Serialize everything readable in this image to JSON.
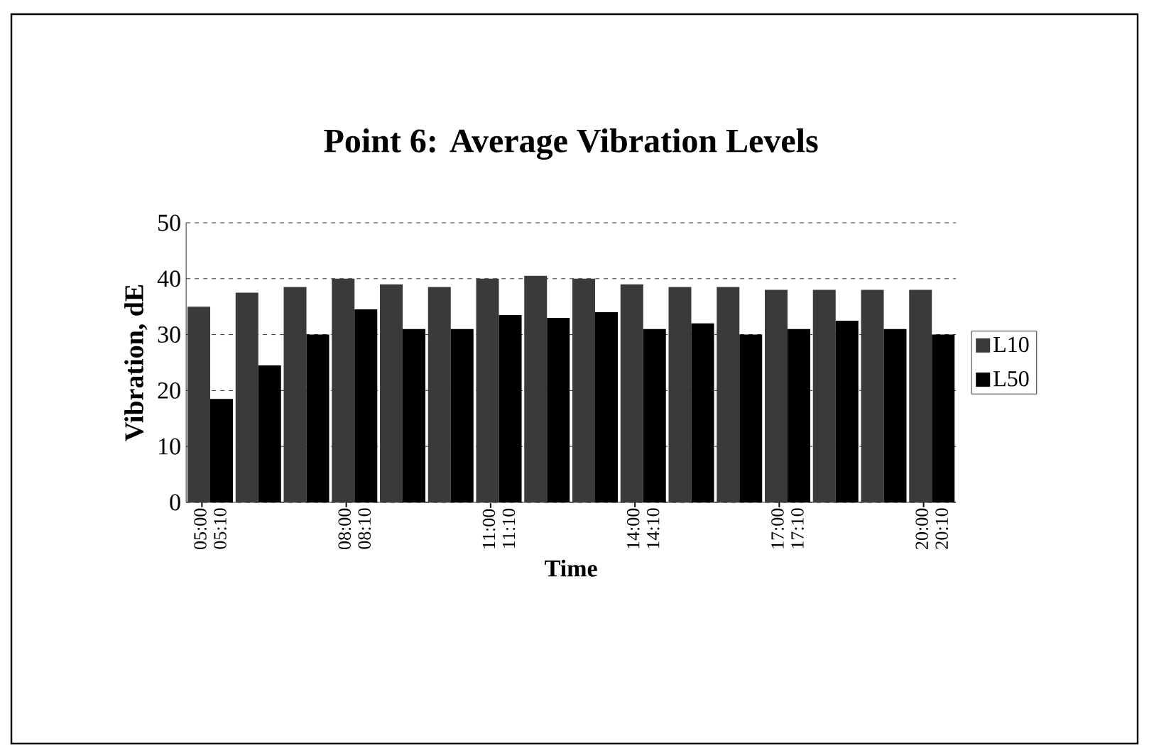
{
  "chart_data": {
    "type": "bar",
    "title": "Point 6: Average Vibration Levels",
    "xlabel": "Time",
    "ylabel": "Vibration, dE",
    "categories": [
      "05:00-05:10",
      null,
      null,
      "08:00-08:10",
      null,
      null,
      "11:00-11:10",
      null,
      null,
      "14:00-14:10",
      null,
      null,
      "17:00-17:10",
      null,
      null,
      "20:00-20:10"
    ],
    "series": [
      {
        "name": "L10",
        "color": "#3a3a3a",
        "values": [
          35,
          37.5,
          38.5,
          40,
          39,
          38.5,
          40,
          40.5,
          40,
          39,
          38.5,
          38.5,
          38,
          38,
          38,
          38
        ]
      },
      {
        "name": "L50",
        "color": "#000000",
        "values": [
          18.5,
          24.5,
          30,
          34.5,
          31,
          31,
          33.5,
          33,
          34,
          31,
          32,
          30,
          31,
          32.5,
          31,
          30
        ]
      }
    ],
    "ylim": [
      0,
      50
    ],
    "yticks": [
      0,
      10,
      20,
      30,
      40,
      50
    ],
    "grid": "y",
    "legend": "right"
  }
}
